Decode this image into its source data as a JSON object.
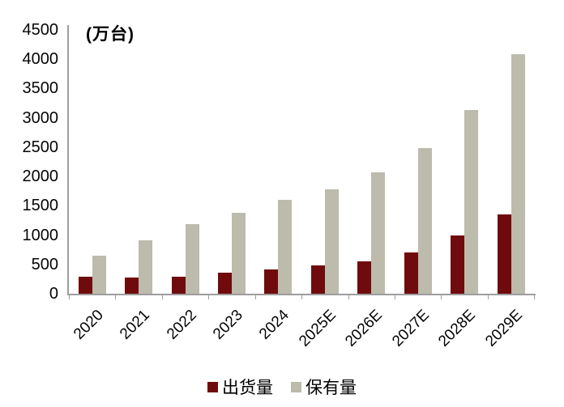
{
  "chart_data": {
    "type": "bar",
    "unit_label": "(万台)",
    "categories": [
      "2020",
      "2021",
      "2022",
      "2023",
      "2024",
      "2025E",
      "2026E",
      "2027E",
      "2028E",
      "2029E"
    ],
    "series": [
      {
        "name": "出货量",
        "key": "shipments",
        "color": "#700b0d",
        "values": [
          295,
          270,
          290,
          360,
          410,
          480,
          555,
          700,
          995,
          1350
        ]
      },
      {
        "name": "保有量",
        "key": "ownership",
        "color": "#bcbbac",
        "values": [
          650,
          905,
          1190,
          1385,
          1595,
          1780,
          2065,
          2490,
          3130,
          4080
        ]
      }
    ],
    "ylim": [
      0,
      4500
    ],
    "ytick_step": 500,
    "yticks": [
      4500,
      4000,
      3500,
      3000,
      2500,
      2000,
      1500,
      1000,
      500,
      0
    ],
    "xlabel": "",
    "ylabel": "",
    "title": "",
    "legend_position": "bottom",
    "grid": false,
    "axis_color": "#9d9d9d",
    "text_color": "#050505",
    "background": "#ffffff"
  }
}
